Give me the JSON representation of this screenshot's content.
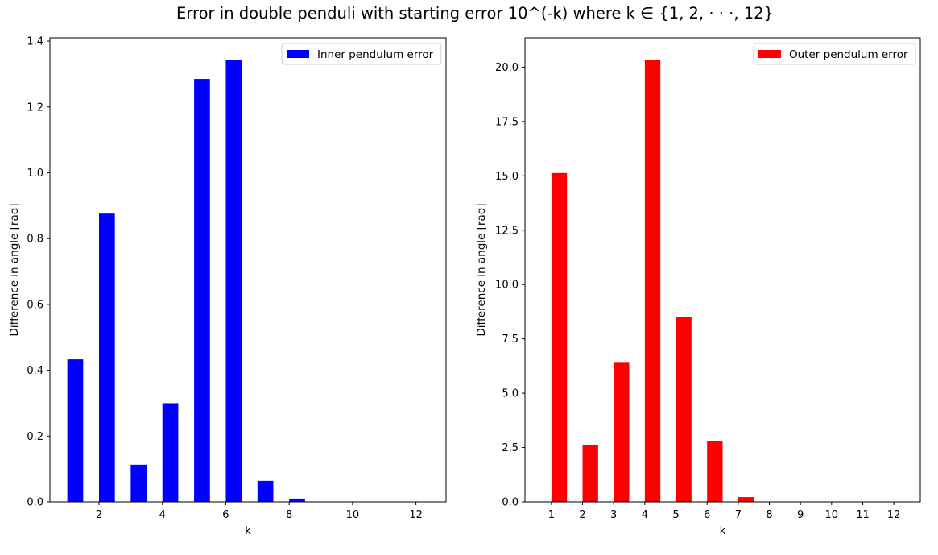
{
  "figure": {
    "title": "Error in double penduli with starting error 10^(-k) where k ∈ {1, 2, · · ·, 12}"
  },
  "chart_data": [
    {
      "type": "bar",
      "x": [
        1,
        2,
        3,
        4,
        5,
        6,
        7,
        8,
        9,
        10,
        11,
        12
      ],
      "series": [
        {
          "name": "Inner pendulum error",
          "color": "#0000ff",
          "values": [
            0.433,
            0.876,
            0.113,
            0.3,
            1.285,
            1.343,
            0.064,
            0.01,
            0.0,
            0.0,
            0.0,
            0.0
          ]
        }
      ],
      "xlabel": "k",
      "ylabel": "Difference in angle [rad]",
      "xlim": [
        0.45,
        12.95
      ],
      "ylim": [
        0,
        1.41
      ],
      "xticks": [
        2,
        4,
        6,
        8,
        10,
        12
      ],
      "xtick_labels": [
        "2",
        "4",
        "6",
        "8",
        "10",
        "12"
      ],
      "yticks": [
        0.0,
        0.2,
        0.4,
        0.6,
        0.8,
        1.0,
        1.2,
        1.4
      ],
      "ytick_labels": [
        "0.0",
        "0.2",
        "0.4",
        "0.6",
        "0.8",
        "1.0",
        "1.2",
        "1.4"
      ],
      "legend_position": "upper right",
      "grid": false
    },
    {
      "type": "bar",
      "x": [
        1,
        2,
        3,
        4,
        5,
        6,
        7,
        8,
        9,
        10,
        11,
        12
      ],
      "series": [
        {
          "name": "Outer pendulum error",
          "color": "#ff0000",
          "values": [
            15.13,
            2.6,
            6.4,
            20.33,
            8.5,
            2.78,
            0.22,
            0.0,
            0.0,
            0.0,
            0.0,
            0.0
          ]
        }
      ],
      "xlabel": "k",
      "ylabel": "Difference in angle [rad]",
      "xlim": [
        0.15,
        12.85
      ],
      "ylim": [
        0,
        21.35
      ],
      "xticks": [
        1,
        2,
        3,
        4,
        5,
        6,
        7,
        8,
        9,
        10,
        11,
        12
      ],
      "xtick_labels": [
        "1",
        "2",
        "3",
        "4",
        "5",
        "6",
        "7",
        "8",
        "9",
        "10",
        "11",
        "12"
      ],
      "yticks": [
        0.0,
        2.5,
        5.0,
        7.5,
        10.0,
        12.5,
        15.0,
        17.5,
        20.0
      ],
      "ytick_labels": [
        "0.0",
        "2.5",
        "5.0",
        "7.5",
        "10.0",
        "12.5",
        "15.0",
        "17.5",
        "20.0"
      ],
      "legend_position": "upper right",
      "grid": false
    }
  ]
}
